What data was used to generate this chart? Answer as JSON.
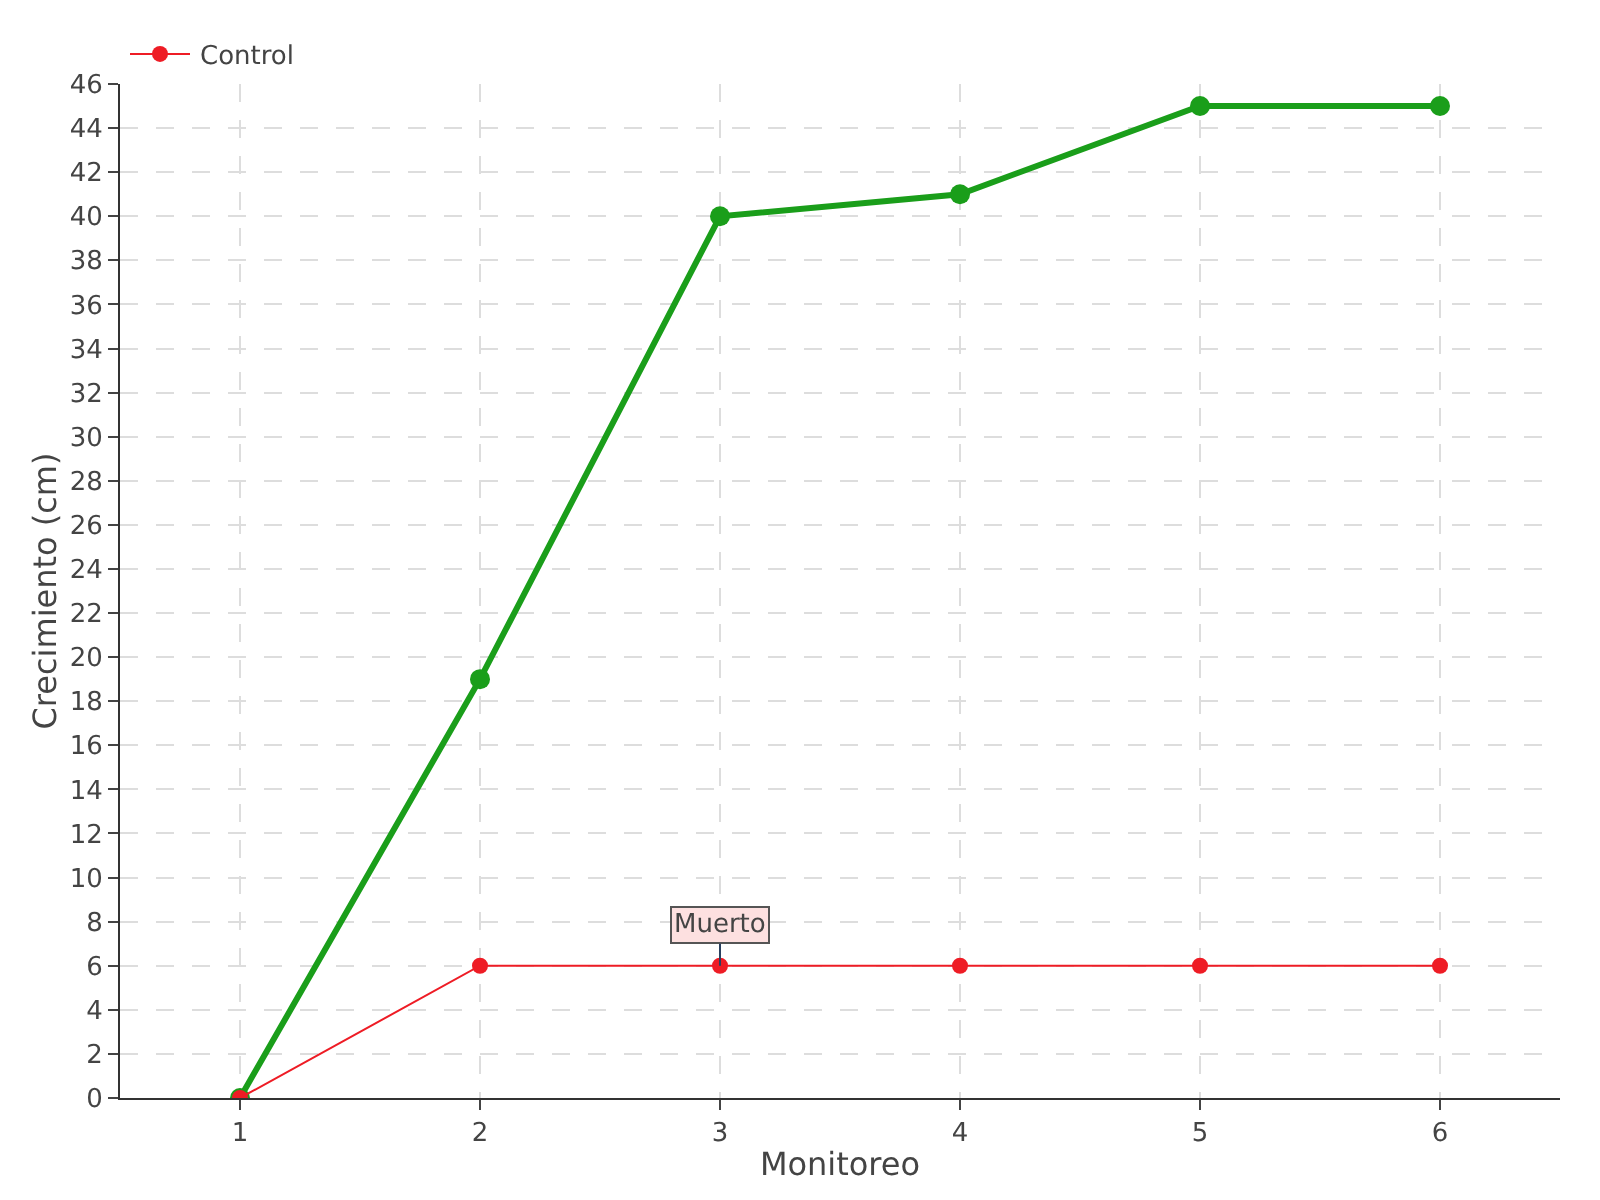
{
  "chart_data": {
    "type": "line",
    "xlabel": "Monitoreo",
    "ylabel": "Crecimiento (cm)",
    "x": [
      1,
      2,
      3,
      4,
      5,
      6
    ],
    "series": [
      {
        "color": "#1a9e1a",
        "values": [
          0,
          19,
          40,
          41,
          45,
          45
        ]
      },
      {
        "name": "Control",
        "color": "#ee1c25",
        "values": [
          0,
          6,
          6,
          6,
          6,
          6
        ]
      }
    ],
    "annotations": [
      {
        "text": "Muerto",
        "x": 3,
        "y": 6
      }
    ],
    "xlim": [
      0.5,
      6.5
    ],
    "xticks": [
      1,
      2,
      3,
      4,
      5,
      6
    ],
    "ylim": [
      0,
      46
    ],
    "yticks": [
      0,
      2,
      4,
      6,
      8,
      10,
      12,
      14,
      16,
      18,
      20,
      22,
      24,
      26,
      28,
      30,
      32,
      34,
      36,
      38,
      40,
      42,
      44,
      46
    ],
    "grid": true,
    "legend": "top left",
    "marker": "circle",
    "line_style": "solid"
  }
}
